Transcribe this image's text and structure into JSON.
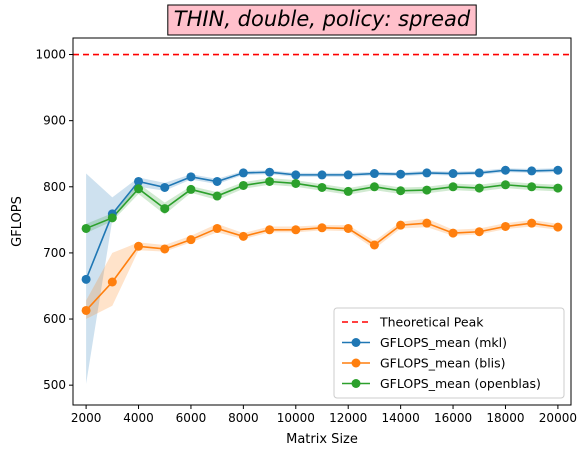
{
  "chart_data": {
    "type": "line",
    "title": "THIN, double, policy: spread",
    "xlabel": "Matrix Size",
    "ylabel": "GFLOPS",
    "xlim": [
      1500,
      20500
    ],
    "ylim": [
      470,
      1025
    ],
    "xticks": [
      2000,
      4000,
      6000,
      8000,
      10000,
      12000,
      14000,
      16000,
      18000,
      20000
    ],
    "yticks": [
      500,
      600,
      700,
      800,
      900,
      1000
    ],
    "legend_position": "lower-right",
    "grid": false,
    "theoretical_peak": {
      "name": "Theoretical Peak",
      "value": 1000,
      "color": "#ff0000"
    },
    "x": [
      2000,
      3000,
      4000,
      5000,
      6000,
      7000,
      8000,
      9000,
      10000,
      11000,
      12000,
      13000,
      14000,
      15000,
      16000,
      17000,
      18000,
      19000,
      20000
    ],
    "series": [
      {
        "name": "GFLOPS_mean (mkl)",
        "color": "#1f77b4",
        "values": [
          660,
          759,
          808,
          799,
          815,
          808,
          821,
          822,
          818,
          818,
          818,
          820,
          819,
          821,
          820,
          821,
          825,
          824,
          825
        ],
        "lower": [
          502,
          750,
          800,
          794,
          811,
          804,
          818,
          819,
          815,
          815,
          815,
          817,
          816,
          818,
          817,
          818,
          822,
          821,
          822
        ],
        "upper": [
          820,
          784,
          814,
          806,
          819,
          812,
          824,
          825,
          821,
          821,
          821,
          823,
          822,
          824,
          823,
          824,
          828,
          827,
          828
        ]
      },
      {
        "name": "GFLOPS_mean (blis)",
        "color": "#ff7f0e",
        "values": [
          613,
          656,
          710,
          706,
          720,
          737,
          725,
          735,
          735,
          738,
          737,
          712,
          742,
          745,
          730,
          732,
          740,
          745,
          739
        ],
        "lower": [
          600,
          620,
          704,
          702,
          716,
          731,
          721,
          731,
          731,
          734,
          733,
          706,
          737,
          739,
          726,
          728,
          736,
          740,
          735
        ],
        "upper": [
          628,
          700,
          716,
          712,
          726,
          744,
          730,
          740,
          740,
          742,
          742,
          718,
          747,
          752,
          735,
          737,
          745,
          750,
          744
        ]
      },
      {
        "name": "GFLOPS_mean (openblas)",
        "color": "#2ca02c",
        "values": [
          737,
          753,
          797,
          767,
          796,
          786,
          802,
          808,
          805,
          799,
          793,
          800,
          794,
          795,
          800,
          798,
          803,
          800,
          798
        ],
        "lower": [
          730,
          748,
          789,
          758,
          791,
          780,
          797,
          803,
          800,
          794,
          788,
          795,
          789,
          790,
          795,
          793,
          798,
          795,
          793
        ],
        "upper": [
          744,
          760,
          805,
          776,
          801,
          792,
          807,
          813,
          810,
          804,
          798,
          805,
          799,
          800,
          805,
          803,
          808,
          805,
          803
        ]
      }
    ]
  }
}
